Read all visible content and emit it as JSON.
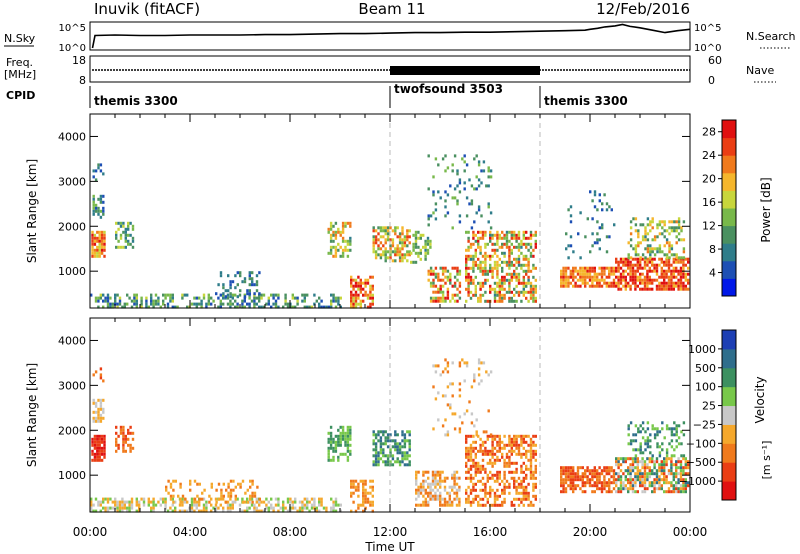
{
  "header": {
    "station": "Inuvik (fitACF)",
    "beam": "Beam 11",
    "date": "12/Feb/2016"
  },
  "chart_data": [
    {
      "type": "line",
      "panel": "noise",
      "left_label": "N.Sky",
      "right_label": "N.Search",
      "left_ticks": [
        "10^5",
        "10^0"
      ],
      "right_ticks": [
        "10^5",
        "10^0"
      ],
      "x_range_hours": [
        0,
        24
      ],
      "series": [
        {
          "values_log10": {
            "x": [
              0.1,
              0.2,
              1,
              2,
              3,
              4,
              5,
              6,
              7,
              8,
              9,
              10,
              11,
              12,
              13,
              14,
              15,
              16,
              17,
              18,
              19,
              19.8,
              20,
              20.3,
              20.6,
              21,
              21.3,
              21.6,
              22,
              22.5,
              23,
              23.5,
              24
            ],
            "y": [
              0,
              2.6,
              2.7,
              2.6,
              2.6,
              2.7,
              2.7,
              2.7,
              2.8,
              2.8,
              2.9,
              3.0,
              3.0,
              3.1,
              3.2,
              3.2,
              3.3,
              3.3,
              3.4,
              3.5,
              3.6,
              3.7,
              3.9,
              4.1,
              4.4,
              4.6,
              4.9,
              4.5,
              4.2,
              3.7,
              3.2,
              3.6,
              3.9
            ]
          }
        }
      ]
    },
    {
      "type": "line",
      "panel": "frequency",
      "left_label": "Freq.",
      "left_unit": "[MHz]",
      "right_label": "Nave",
      "left_ticks": [
        "18",
        "8"
      ],
      "right_ticks": [
        "60",
        "0"
      ],
      "x_range_hours": [
        0,
        24
      ]
    },
    {
      "type": "table",
      "panel": "cpid",
      "label": "CPID",
      "segments": [
        {
          "start": 0,
          "end": 12,
          "name": "themis 3300"
        },
        {
          "start": 12,
          "end": 18,
          "name": "twofsound 3503"
        },
        {
          "start": 18,
          "end": 24,
          "name": "themis 3300"
        }
      ]
    },
    {
      "type": "heatmap",
      "panel": "power",
      "ylabel": "Slant Range [km]",
      "ylim": [
        180,
        4500
      ],
      "yticks": [
        1000,
        2000,
        3000,
        4000
      ],
      "x_range_hours": [
        0,
        24
      ],
      "colorbar_label": "Power [dB]",
      "colorbar_ticks": [
        4,
        8,
        12,
        16,
        20,
        24,
        28
      ],
      "colorbar_range": [
        0,
        30
      ],
      "colors": [
        "#0018e8",
        "#1d4fb4",
        "#2f7d8a",
        "#4a9060",
        "#78b84a",
        "#c8d63c",
        "#f5b62c",
        "#f07a1c",
        "#ea3e14",
        "#e01010"
      ],
      "regions": [
        {
          "t0": 0.05,
          "t1": 0.6,
          "r0": 1300,
          "r1": 1900,
          "v0": 16,
          "v1": 28,
          "d": 0.85
        },
        {
          "t0": 0.1,
          "t1": 0.5,
          "r0": 2200,
          "r1": 2700,
          "v0": 4,
          "v1": 14,
          "d": 0.6
        },
        {
          "t0": 0.1,
          "t1": 0.5,
          "r0": 3000,
          "r1": 3400,
          "v0": 4,
          "v1": 12,
          "d": 0.35
        },
        {
          "t0": 1.0,
          "t1": 1.7,
          "r0": 1500,
          "r1": 2100,
          "v0": 6,
          "v1": 18,
          "d": 0.6
        },
        {
          "t0": 0.0,
          "t1": 10.0,
          "r0": 200,
          "r1": 500,
          "v0": 4,
          "v1": 16,
          "d": 0.45
        },
        {
          "t0": 5.0,
          "t1": 6.8,
          "r0": 400,
          "r1": 1000,
          "v0": 4,
          "v1": 12,
          "d": 0.25
        },
        {
          "t0": 9.5,
          "t1": 10.4,
          "r0": 1300,
          "r1": 2100,
          "v0": 8,
          "v1": 24,
          "d": 0.6
        },
        {
          "t0": 10.4,
          "t1": 11.3,
          "r0": 200,
          "r1": 900,
          "v0": 16,
          "v1": 30,
          "d": 0.65
        },
        {
          "t0": 11.3,
          "t1": 12.8,
          "r0": 1200,
          "r1": 2000,
          "v0": 10,
          "v1": 26,
          "d": 0.6
        },
        {
          "t0": 12.8,
          "t1": 13.6,
          "r0": 1200,
          "r1": 1900,
          "v0": 8,
          "v1": 18,
          "d": 0.4
        },
        {
          "t0": 13.5,
          "t1": 14.8,
          "r0": 300,
          "r1": 1100,
          "v0": 10,
          "v1": 28,
          "d": 0.55
        },
        {
          "t0": 15.0,
          "t1": 17.8,
          "r0": 300,
          "r1": 1900,
          "v0": 8,
          "v1": 28,
          "d": 0.55
        },
        {
          "t0": 13.5,
          "t1": 16.0,
          "r0": 1900,
          "r1": 3600,
          "v0": 4,
          "v1": 14,
          "d": 0.12
        },
        {
          "t0": 18.8,
          "t1": 21.0,
          "r0": 650,
          "r1": 1100,
          "v0": 18,
          "v1": 28,
          "d": 0.75
        },
        {
          "t0": 21.0,
          "t1": 23.9,
          "r0": 600,
          "r1": 1300,
          "v0": 20,
          "v1": 30,
          "d": 0.75
        },
        {
          "t0": 21.5,
          "t1": 23.8,
          "r0": 1300,
          "r1": 2200,
          "v0": 8,
          "v1": 22,
          "d": 0.35
        },
        {
          "t0": 19.0,
          "t1": 21.0,
          "r0": 1300,
          "r1": 2800,
          "v0": 4,
          "v1": 12,
          "d": 0.1
        }
      ]
    },
    {
      "type": "heatmap",
      "panel": "velocity",
      "ylabel": "Slant Range [km]",
      "ylim": [
        180,
        4500
      ],
      "yticks": [
        1000,
        2000,
        3000,
        4000
      ],
      "x_range_hours": [
        0,
        24
      ],
      "xticks": [
        "00:00",
        "04:00",
        "08:00",
        "12:00",
        "16:00",
        "20:00",
        "00:00"
      ],
      "xlabel": "Time UT",
      "colorbar_label": "Velocity",
      "colorbar_unit": "[m s⁻¹]",
      "colorbar_ticks": [
        "1000",
        "500",
        "100",
        "25",
        "−25",
        "−100",
        "−500",
        "−1000"
      ],
      "colors": [
        "#e01010",
        "#ea3e14",
        "#f07a1c",
        "#f5a82c",
        "#c8c8c8",
        "#78c84a",
        "#3c9060",
        "#2f6e8c",
        "#1d3fb4"
      ],
      "regions": [
        {
          "t0": 0.05,
          "t1": 0.6,
          "r0": 1300,
          "r1": 1900,
          "v0": 0,
          "v1": 2,
          "d": 0.85
        },
        {
          "t0": 0.1,
          "t1": 0.5,
          "r0": 2200,
          "r1": 2700,
          "v0": 3,
          "v1": 5,
          "d": 0.5
        },
        {
          "t0": 0.1,
          "t1": 0.5,
          "r0": 3100,
          "r1": 3400,
          "v0": 1,
          "v1": 3,
          "d": 0.35
        },
        {
          "t0": 1.0,
          "t1": 1.7,
          "r0": 1500,
          "r1": 2100,
          "v0": 1,
          "v1": 3,
          "d": 0.6
        },
        {
          "t0": 0.0,
          "t1": 10.0,
          "r0": 200,
          "r1": 500,
          "v0": 3,
          "v1": 6,
          "d": 0.5
        },
        {
          "t0": 3.0,
          "t1": 6.8,
          "r0": 400,
          "r1": 900,
          "v0": 2,
          "v1": 4,
          "d": 0.3
        },
        {
          "t0": 9.5,
          "t1": 10.4,
          "r0": 1300,
          "r1": 2100,
          "v0": 5,
          "v1": 7,
          "d": 0.6
        },
        {
          "t0": 10.4,
          "t1": 11.3,
          "r0": 200,
          "r1": 900,
          "v0": 2,
          "v1": 4,
          "d": 0.55
        },
        {
          "t0": 11.3,
          "t1": 12.8,
          "r0": 1200,
          "r1": 2000,
          "v0": 5,
          "v1": 8,
          "d": 0.6
        },
        {
          "t0": 13.0,
          "t1": 14.8,
          "r0": 300,
          "r1": 1100,
          "v0": 2,
          "v1": 5,
          "d": 0.55
        },
        {
          "t0": 15.0,
          "t1": 17.8,
          "r0": 300,
          "r1": 1900,
          "v0": 1,
          "v1": 4,
          "d": 0.55
        },
        {
          "t0": 13.5,
          "t1": 16.0,
          "r0": 1900,
          "r1": 3600,
          "v0": 2,
          "v1": 5,
          "d": 0.12
        },
        {
          "t0": 18.8,
          "t1": 21.0,
          "r0": 650,
          "r1": 1200,
          "v0": 1,
          "v1": 3,
          "d": 0.7
        },
        {
          "t0": 21.0,
          "t1": 23.9,
          "r0": 600,
          "r1": 1400,
          "v0": 1,
          "v1": 8,
          "d": 0.7
        },
        {
          "t0": 21.5,
          "t1": 23.8,
          "r0": 1400,
          "r1": 2200,
          "v0": 5,
          "v1": 8,
          "d": 0.35
        }
      ]
    }
  ]
}
